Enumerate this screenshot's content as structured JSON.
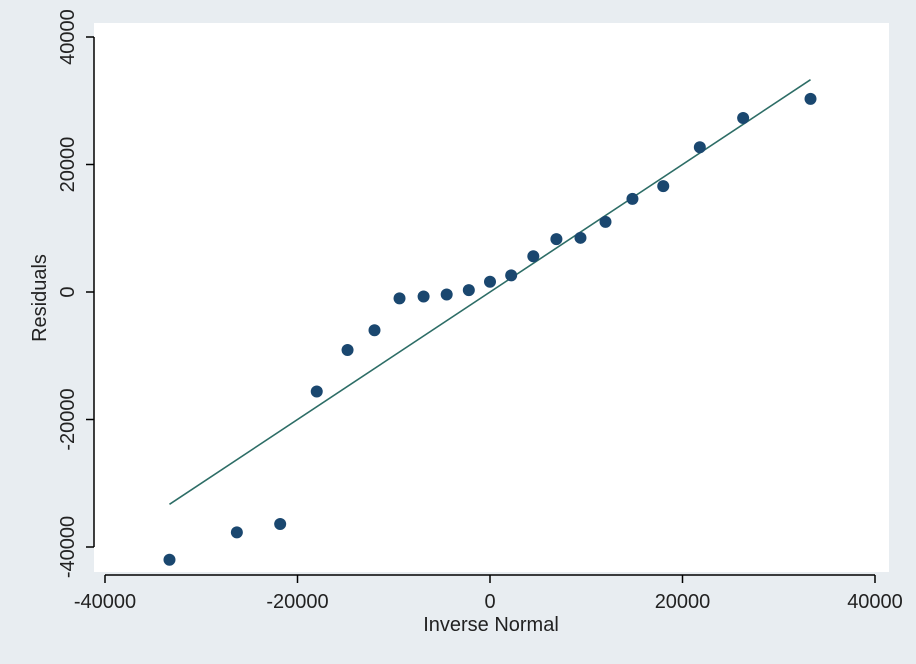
{
  "chart_data": {
    "type": "scatter",
    "xlabel": "Inverse Normal",
    "ylabel": "Residuals",
    "xlim": [
      -40000,
      40000
    ],
    "ylim": [
      -40000,
      40000
    ],
    "x_ticks": [
      -40000,
      -20000,
      0,
      20000,
      40000
    ],
    "y_ticks": [
      -40000,
      -20000,
      0,
      20000,
      40000
    ],
    "x_tick_labels": [
      "-40000",
      "-20000",
      "0",
      "20000",
      "40000"
    ],
    "y_tick_labels": [
      "-40000",
      "-20000",
      "0",
      "20000",
      "40000"
    ],
    "grid": false,
    "legend": "none",
    "series": [
      {
        "type": "scatter",
        "color": "#1a476f",
        "points": [
          [
            -33300,
            -42000
          ],
          [
            -26300,
            -37700
          ],
          [
            -21800,
            -36400
          ],
          [
            -18000,
            -15600
          ],
          [
            -14800,
            -9100
          ],
          [
            -12000,
            -6000
          ],
          [
            -9400,
            -1000
          ],
          [
            -6900,
            -700
          ],
          [
            -4500,
            -400
          ],
          [
            -2200,
            300
          ],
          [
            0,
            1600
          ],
          [
            2200,
            2600
          ],
          [
            4500,
            5600
          ],
          [
            6900,
            8300
          ],
          [
            9400,
            8500
          ],
          [
            12000,
            11000
          ],
          [
            14800,
            14600
          ],
          [
            18000,
            16600
          ],
          [
            21800,
            22700
          ],
          [
            26300,
            27300
          ],
          [
            33300,
            30300
          ]
        ]
      },
      {
        "type": "line",
        "color": "#2d6d66",
        "points": [
          [
            -33300,
            -33300
          ],
          [
            33300,
            33300
          ]
        ]
      }
    ]
  },
  "colors": {
    "outer_background": "#e8edf1",
    "plot_background": "#ffffff",
    "axis": "#000000"
  }
}
